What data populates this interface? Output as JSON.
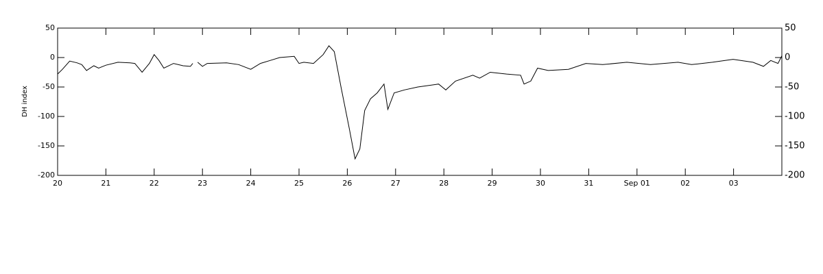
{
  "chart_data": {
    "type": "line",
    "y_label": "DH index",
    "xlim": [
      0,
      15
    ],
    "xticks": [
      {
        "value": 0,
        "label": "20"
      },
      {
        "value": 1,
        "label": "21"
      },
      {
        "value": 2,
        "label": "22"
      },
      {
        "value": 3,
        "label": "23"
      },
      {
        "value": 4,
        "label": "24"
      },
      {
        "value": 5,
        "label": "25"
      },
      {
        "value": 6,
        "label": "26"
      },
      {
        "value": 7,
        "label": "27"
      },
      {
        "value": 8,
        "label": "28"
      },
      {
        "value": 9,
        "label": "29"
      },
      {
        "value": 10,
        "label": "30"
      },
      {
        "value": 11,
        "label": "31"
      },
      {
        "value": 12,
        "label": "Sep 01"
      },
      {
        "value": 13,
        "label": "02"
      },
      {
        "value": 14,
        "label": "03"
      }
    ],
    "ylim": [
      -200,
      50
    ],
    "yticks": [
      50,
      0,
      -50,
      -100,
      -150,
      -200
    ],
    "series": [
      {
        "color": "#000000",
        "x": [
          0,
          0.1,
          0.25,
          0.4,
          0.5,
          0.6,
          0.75,
          0.85,
          1.0,
          1.25,
          1.5,
          1.6,
          1.75,
          1.9,
          2.0,
          2.1,
          2.2,
          2.4,
          2.6,
          2.75,
          2.8,
          2.85,
          2.9,
          3.0,
          3.1,
          3.5,
          3.75,
          4.0,
          4.2,
          4.4,
          4.6,
          4.9,
          5.0,
          5.1,
          5.3,
          5.5,
          5.62,
          5.73,
          5.87,
          6.04,
          6.16,
          6.26,
          6.36,
          6.48,
          6.62,
          6.76,
          6.84,
          6.97,
          7.18,
          7.46,
          7.89,
          8.04,
          8.24,
          8.6,
          8.74,
          8.96,
          9.3,
          9.59,
          9.66,
          9.8,
          9.94,
          10.16,
          10.58,
          10.94,
          11.29,
          11.79,
          12.28,
          12.85,
          13.13,
          13.56,
          13.99,
          14.4,
          14.62,
          14.77,
          14.92,
          15
        ],
        "values": [
          -28,
          -20,
          -6,
          -9,
          -12,
          -22,
          -14,
          -18,
          -13,
          -8,
          -9,
          -10,
          -25,
          -10,
          5,
          -5,
          -18,
          -10,
          -14,
          -15,
          -10,
          null,
          -8,
          -15,
          -10,
          -9,
          -12,
          -20,
          -10,
          -5,
          0,
          2,
          -10,
          -8,
          -10,
          5,
          20,
          10,
          -50,
          -120,
          -172,
          -155,
          -90,
          -70,
          -60,
          -45,
          -88,
          -60,
          -55,
          -50,
          -45,
          -55,
          -40,
          -30,
          -35,
          -25,
          -28,
          -30,
          -45,
          -40,
          -18,
          -22,
          -20,
          -10,
          -12,
          -8,
          -12,
          -8,
          -12,
          -8,
          -3,
          -8,
          -15,
          -5,
          -10,
          3
        ]
      }
    ]
  }
}
